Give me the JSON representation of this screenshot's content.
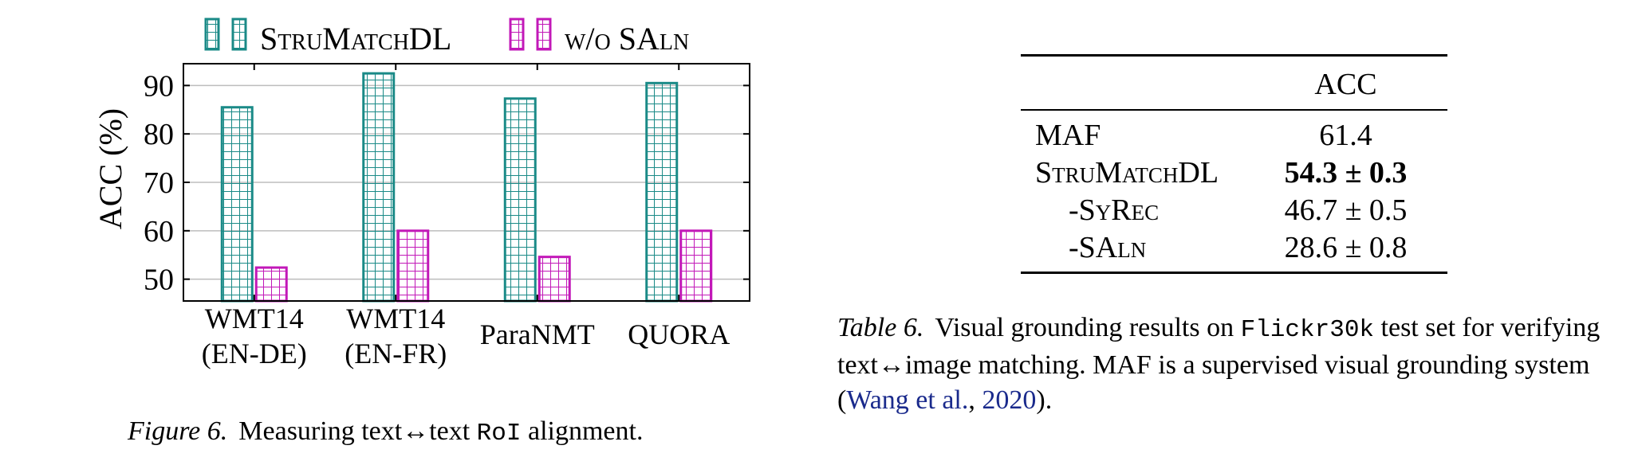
{
  "chart_data": {
    "type": "bar",
    "categories": [
      [
        "WMT14",
        "(EN-DE)"
      ],
      [
        "WMT14",
        "(EN-FR)"
      ],
      [
        "ParaNMT"
      ],
      [
        "QUORA"
      ]
    ],
    "series": [
      {
        "name": "StruMatchDL",
        "values": [
          85.5,
          92.5,
          87.3,
          90.5
        ],
        "color": "#1a8a87"
      },
      {
        "name": "w/o SAln",
        "values": [
          52.4,
          60.0,
          54.6,
          60.0
        ],
        "color": "#c218b8"
      }
    ],
    "ylabel": "ACC (%)",
    "yticks": [
      50,
      60,
      70,
      80,
      90
    ],
    "ylim": [
      45.5,
      94.5
    ],
    "grid": true,
    "legend_position": "top"
  },
  "figure_caption": {
    "label": "Figure 6.",
    "text_before": "Measuring text↔text ",
    "code": "RoI",
    "text_after": " alignment."
  },
  "table": {
    "column_header": "ACC",
    "rows": [
      {
        "name": "MAF",
        "value": "61.4",
        "bold": false,
        "indent": false
      },
      {
        "name": "StruMatchDL",
        "value": "54.3 ± 0.3",
        "bold": true,
        "indent": false
      },
      {
        "name": "-SyRec",
        "value": "46.7 ± 0.5",
        "bold": false,
        "indent": true
      },
      {
        "name": "-SAln",
        "value": "28.6 ± 0.8",
        "bold": false,
        "indent": true
      }
    ]
  },
  "table_caption": {
    "label": "Table 6.",
    "text_before": "Visual grounding results on ",
    "code": "Flickr30k",
    "text_middle": " test set for verifying text↔image matching. MAF is a supervised visual grounding system (",
    "citation_author": "Wang et al.",
    "citation_sep": ", ",
    "citation_year": "2020",
    "text_after": ")."
  }
}
